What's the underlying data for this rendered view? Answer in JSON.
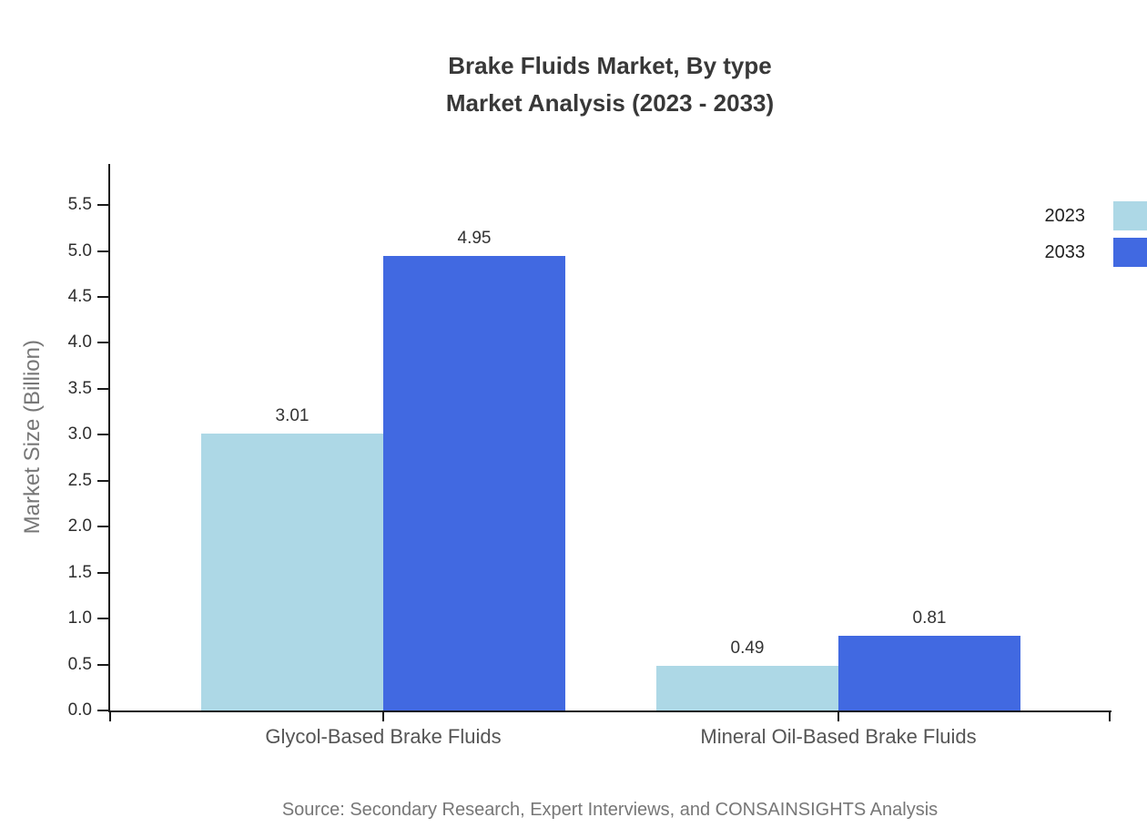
{
  "title": {
    "line1": "Brake Fluids Market, By type",
    "line2": "Market Analysis (2023 - 2033)"
  },
  "source": "Source: Secondary Research, Expert Interviews, and CONSAINSIGHTS Analysis",
  "colors": {
    "series_2023": "#ADD8E6",
    "series_2033": "#4169E1",
    "axis": "#1a1a1a",
    "title_text": "#383838",
    "tick_text": "#2e2e2e",
    "category_text": "#555555",
    "muted_text": "#777777"
  },
  "chart_data": {
    "type": "bar",
    "title": "Brake Fluids Market, By type Market Analysis (2023 - 2033)",
    "categories": [
      "Glycol-Based Brake Fluids",
      "Mineral Oil-Based Brake Fluids"
    ],
    "series": [
      {
        "name": "2023",
        "color": "#ADD8E6",
        "values": [
          3.01,
          0.49
        ],
        "labels": [
          "3.01",
          "0.49"
        ]
      },
      {
        "name": "2033",
        "color": "#4169E1",
        "values": [
          4.95,
          0.81
        ],
        "labels": [
          "4.95",
          "0.81"
        ]
      }
    ],
    "xlabel": "",
    "ylabel": "Market Size (Billion)",
    "ylim": [
      0,
      5.95
    ],
    "ytick_labels": [
      "0.0",
      "0.5",
      "1.0",
      "1.5",
      "2.0",
      "2.5",
      "3.0",
      "3.5",
      "4.0",
      "4.5",
      "5.0",
      "5.5"
    ],
    "grid": false,
    "legend_position": "top-right"
  }
}
